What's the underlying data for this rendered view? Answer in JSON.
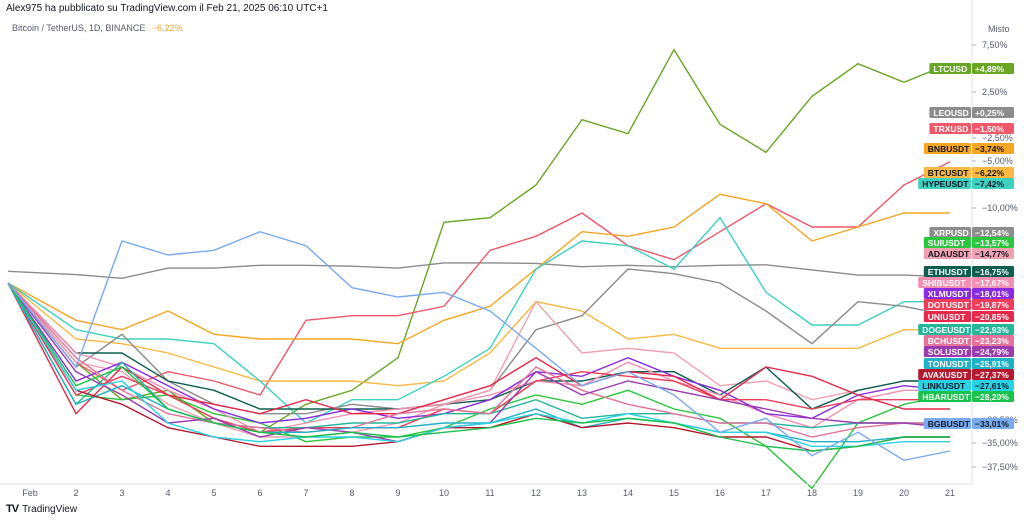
{
  "header": {
    "published_by": "Alex975 ha pubblicato su TradingView.com il Feb 21, 2025 06:10 UTC+1"
  },
  "symbol": {
    "title": "Bitcoin / TetherUS, 1D, BINANCE",
    "change": "−6,22%",
    "change_color": "#f5a623"
  },
  "footer": {
    "brand": "TradingView",
    "logo": "TV"
  },
  "chart_data": {
    "type": "line",
    "scale_mode": "Misto",
    "x_tick_labels": [
      "Feb",
      "2",
      "3",
      "4",
      "5",
      "6",
      "7",
      "8",
      "9",
      "10",
      "11",
      "12",
      "13",
      "14",
      "15",
      "16",
      "17",
      "18",
      "19",
      "20",
      "21"
    ],
    "y_ticks": [
      "7,50%",
      "2,50%",
      "−2,50%",
      "−5,00%",
      "−10,00%",
      "−22,50%",
      "−35,00%",
      "−37,50%"
    ],
    "grid": false,
    "legend": "right-axis labels",
    "series": [
      {
        "name": "LTCUSD",
        "change": "+4,89%",
        "color": "#6aa625",
        "text_color": "#ffffff",
        "y": [
          -1,
          -18,
          -26,
          -24,
          -31,
          -33,
          -27,
          -24,
          -17,
          12,
          13,
          20,
          34,
          31,
          49,
          33,
          27,
          39,
          46,
          42,
          46
        ]
      },
      {
        "name": "LEOUSD",
        "change": "+0,25%",
        "color": "#8c8c8c",
        "text_color": "#ffffff",
        "y": [
          1.5,
          0.8,
          0,
          2.2,
          2.2,
          2.8,
          2.8,
          2.6,
          2.2,
          3.3,
          3.3,
          3.2,
          2.5,
          2.8,
          2.5,
          2.8,
          2.9,
          1.8,
          0.7,
          0.7,
          0.3
        ]
      },
      {
        "name": "TRXUSD",
        "change": "−1,50%",
        "color": "#f05869",
        "text_color": "#ffffff",
        "y": [
          -1,
          -18,
          -24,
          -20,
          -22,
          -25,
          -9,
          -8,
          -8,
          -6,
          6,
          9,
          14,
          7,
          4,
          10,
          16,
          11,
          11,
          20,
          25
        ]
      },
      {
        "name": "BNBUSDT",
        "change": "−3,74%",
        "color": "#f5a623",
        "text_color": "#131722",
        "y": [
          -1,
          -9,
          -11,
          -7,
          -12,
          -13,
          -13,
          -13,
          -14,
          -9,
          -6,
          2,
          10,
          9,
          11,
          18,
          16,
          8,
          11,
          14,
          14
        ]
      },
      {
        "name": "BTCUSDT",
        "change": "−6,22%",
        "color": "#fcb842",
        "text_color": "#131722",
        "y": [
          -1,
          -13,
          -14,
          -16,
          -19,
          -22,
          -22,
          -22,
          -23,
          -22,
          -16,
          -5,
          -7,
          -13,
          -12,
          -15,
          -15,
          -15,
          -15,
          -11,
          -11
        ]
      },
      {
        "name": "HYPEUSDT",
        "change": "−7,42%",
        "color": "#3fd1c0",
        "text_color": "#131722",
        "y": [
          -1,
          -11,
          -13,
          -13,
          -14,
          -22,
          -31,
          -26,
          -26,
          -21,
          -15,
          2,
          8,
          7,
          2,
          13,
          -3,
          -10,
          -10,
          -5,
          -5
        ]
      },
      {
        "name": "XRPUSD",
        "change": "−12,54%",
        "color": "#8c8c8c",
        "text_color": "#ffffff",
        "y": [
          -1,
          -19,
          -12,
          -22,
          -27,
          -29,
          -29,
          -27,
          -28,
          -27,
          -24,
          -11,
          -8,
          2,
          1,
          -1,
          -7,
          -14,
          -5,
          -6,
          -8
        ]
      },
      {
        "name": "SUIUSDT",
        "change": "−13,57%",
        "color": "#2bc63e",
        "text_color": "#ffffff",
        "y": [
          -1,
          -25,
          -26,
          -25,
          -29,
          -31,
          -35,
          -34,
          -34,
          -32,
          -28,
          -25,
          -27,
          -24,
          -28,
          -30,
          -36,
          -45,
          -31,
          -27,
          -25
        ]
      },
      {
        "name": "ADAUSDT",
        "change": "−14,77%",
        "color": "#f0a0b0",
        "text_color": "#131722",
        "y": [
          -1,
          -18,
          -20,
          -27,
          -31,
          -34,
          -34,
          -33,
          -31,
          -27,
          -24,
          -5,
          -16,
          -15,
          -16,
          -23,
          -22,
          -26,
          -24,
          -22,
          -22
        ]
      },
      {
        "name": "ETHUSDT",
        "change": "−16,75%",
        "color": "#0d5e4f",
        "text_color": "#ffffff",
        "y": [
          -1,
          -16,
          -16,
          -22,
          -24,
          -28,
          -28,
          -28,
          -28,
          -27,
          -26,
          -22,
          -22,
          -20,
          -20,
          -25,
          -19,
          -28,
          -24,
          -22,
          -22
        ]
      },
      {
        "name": "SHIBUSDT",
        "change": "−17,67%",
        "color": "#f48fb1",
        "text_color": "#ffffff",
        "y": [
          -1,
          -16,
          -19,
          -24,
          -28,
          -33,
          -31,
          -29,
          -28,
          -27,
          -25,
          -22,
          -23,
          -18,
          -22,
          -25,
          -29,
          -32,
          -26,
          -24,
          -24
        ]
      },
      {
        "name": "XLMUSDT",
        "change": "−18,01%",
        "color": "#8a2be2",
        "text_color": "#ffffff",
        "y": [
          -1,
          -22,
          -18,
          -23,
          -28,
          -31,
          -30,
          -28,
          -30,
          -29,
          -26,
          -20,
          -21,
          -17,
          -21,
          -24,
          -29,
          -30,
          -25,
          -23,
          -24
        ]
      },
      {
        "name": "DOTUSDT",
        "change": "−19,87%",
        "color": "#ed3d59",
        "text_color": "#ffffff",
        "y": [
          -1,
          -25,
          -21,
          -25,
          -30,
          -33,
          -32,
          -32,
          -32,
          -28,
          -29,
          -22,
          -20,
          -21,
          -22,
          -26,
          -26,
          -28,
          -26,
          -26,
          -26
        ]
      },
      {
        "name": "UNIUSDT",
        "change": "−20,85%",
        "color": "#e6284a",
        "text_color": "#ffffff",
        "y": [
          -1,
          -29,
          -19,
          -25,
          -27,
          -29,
          -26,
          -29,
          -29,
          -26,
          -23,
          -17,
          -23,
          -20,
          -21,
          -26,
          -19,
          -21,
          -25,
          -28,
          -28
        ]
      },
      {
        "name": "DOGEUSDT",
        "change": "−22,93%",
        "color": "#25b59a",
        "text_color": "#ffffff",
        "y": [
          -1,
          -27,
          -18,
          -28,
          -31,
          -32,
          -32,
          -31,
          -31,
          -29,
          -29,
          -26,
          -30,
          -29,
          -29,
          -31,
          -31,
          -32,
          -31,
          -31,
          -31
        ]
      },
      {
        "name": "BCHUSDT",
        "change": "−23,23%",
        "color": "#e57399",
        "text_color": "#ffffff",
        "y": [
          -1,
          -17,
          -24,
          -29,
          -31,
          -32,
          -33,
          -32,
          -29,
          -28,
          -29,
          -19,
          -24,
          -27,
          -29,
          -31,
          -31,
          -34,
          -32,
          -31,
          -31
        ]
      },
      {
        "name": "SOLUSDT",
        "change": "−24,79%",
        "color": "#9c3ab0",
        "text_color": "#ffffff",
        "y": [
          -1,
          -20,
          -25,
          -31,
          -30,
          -34,
          -32,
          -33,
          -35,
          -32,
          -31,
          -20,
          -25,
          -22,
          -24,
          -26,
          -28,
          -30,
          -31,
          -31,
          -32
        ]
      },
      {
        "name": "TONUSDT",
        "change": "−25,91%",
        "color": "#1fb1c6",
        "text_color": "#ffffff",
        "y": [
          -1,
          -27,
          -23,
          -28,
          -31,
          -33,
          -33,
          -32,
          -32,
          -31,
          -31,
          -28,
          -32,
          -30,
          -31,
          -33,
          -33,
          -35,
          -35,
          -34,
          -34
        ]
      },
      {
        "name": "AVAXUSDT",
        "change": "−27,37%",
        "color": "#b7182e",
        "text_color": "#ffffff",
        "y": [
          -1,
          -24,
          -27,
          -32,
          -34,
          -36,
          -36,
          -36,
          -35,
          -32,
          -32,
          -29,
          -32,
          -31,
          -32,
          -34,
          -34,
          -37,
          -36,
          -34,
          -34
        ]
      },
      {
        "name": "LINKUSDT",
        "change": "−27,61%",
        "color": "#27d3e5",
        "text_color": "#131722",
        "y": [
          -1,
          -24,
          -22,
          -31,
          -34,
          -35,
          -34,
          -34,
          -35,
          -32,
          -31,
          -29,
          -31,
          -29,
          -31,
          -33,
          -33,
          -36,
          -36,
          -35,
          -35
        ]
      },
      {
        "name": "HBARUSDT",
        "change": "−28,20%",
        "color": "#19c24b",
        "text_color": "#ffffff",
        "y": [
          -1,
          -23,
          -19,
          -28,
          -31,
          -33,
          -34,
          -33,
          -34,
          -33,
          -32,
          -30,
          -31,
          -30,
          -31,
          -34,
          -36,
          -37,
          -36,
          -34,
          -34
        ]
      },
      {
        "name": "BGBUSDT",
        "change": "−33,01%",
        "color": "#7aaaf0",
        "text_color": "#131722",
        "y": [
          -1,
          -19,
          8,
          5,
          6,
          10,
          7,
          -2,
          -4,
          -3,
          -7,
          -15,
          -23,
          -20,
          -25,
          -33,
          -30,
          -38,
          -33,
          -39,
          -37
        ]
      }
    ]
  }
}
